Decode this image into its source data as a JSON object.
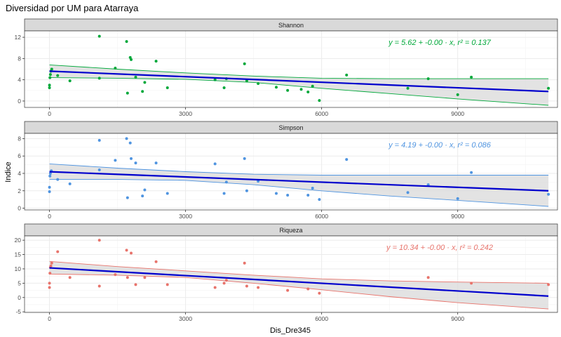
{
  "title": "Diversidad por UM para Atarraya",
  "xlabel": "Dis_Dre345",
  "ylabel": "Indice",
  "colors": {
    "strip_bg": "#d9d9d9",
    "panel_border": "#333333",
    "grid": "#ebebeb",
    "ribbon": "#d9d9d9",
    "fit_line": "#0000cd"
  },
  "chart_data": [
    {
      "type": "scatter",
      "strip": "Shannon",
      "color": "#00a83a",
      "equation": "y = 5.62 + -0.00 · x,  r² = 0.137",
      "xlim": [
        -550,
        11200
      ],
      "ylim": [
        -1.2,
        13.2
      ],
      "y_ticks": [
        0,
        4,
        8,
        12
      ],
      "x_ticks": [
        0,
        3000,
        6000,
        9000
      ],
      "fit": {
        "x": [
          0,
          11000
        ],
        "y": [
          5.62,
          1.8
        ]
      },
      "ribbon_upper": {
        "x": [
          0,
          1500,
          3000,
          4500,
          6000,
          7500,
          9000,
          11000
        ],
        "y": [
          6.8,
          6.0,
          5.3,
          4.7,
          4.3,
          4.2,
          4.2,
          4.2
        ]
      },
      "ribbon_lower": {
        "x": [
          0,
          1500,
          3000,
          4500,
          6000,
          7500,
          9000,
          11000
        ],
        "y": [
          4.4,
          4.3,
          4.1,
          3.5,
          2.4,
          1.4,
          0.4,
          -0.8
        ]
      },
      "points": [
        {
          "x": 0,
          "y": 2.5
        },
        {
          "x": 0,
          "y": 3.0
        },
        {
          "x": 10,
          "y": 4.4
        },
        {
          "x": 20,
          "y": 5.0
        },
        {
          "x": 30,
          "y": 5.6
        },
        {
          "x": 50,
          "y": 6.0
        },
        {
          "x": 180,
          "y": 4.8
        },
        {
          "x": 450,
          "y": 3.8
        },
        {
          "x": 1100,
          "y": 12.2
        },
        {
          "x": 1100,
          "y": 4.3
        },
        {
          "x": 1450,
          "y": 6.2
        },
        {
          "x": 1700,
          "y": 11.2
        },
        {
          "x": 1720,
          "y": 1.5
        },
        {
          "x": 1780,
          "y": 8.2
        },
        {
          "x": 1800,
          "y": 7.8
        },
        {
          "x": 1900,
          "y": 4.5
        },
        {
          "x": 2050,
          "y": 1.8
        },
        {
          "x": 2100,
          "y": 3.5
        },
        {
          "x": 2350,
          "y": 7.5
        },
        {
          "x": 2600,
          "y": 2.5
        },
        {
          "x": 3650,
          "y": 4.0
        },
        {
          "x": 3850,
          "y": 2.5
        },
        {
          "x": 3900,
          "y": 4.2
        },
        {
          "x": 4300,
          "y": 7.0
        },
        {
          "x": 4350,
          "y": 3.8
        },
        {
          "x": 4600,
          "y": 3.3
        },
        {
          "x": 5000,
          "y": 2.6
        },
        {
          "x": 5250,
          "y": 2.0
        },
        {
          "x": 5550,
          "y": 2.2
        },
        {
          "x": 5700,
          "y": 1.7
        },
        {
          "x": 5800,
          "y": 2.8
        },
        {
          "x": 5950,
          "y": 0.1
        },
        {
          "x": 6550,
          "y": 4.9
        },
        {
          "x": 7900,
          "y": 2.4
        },
        {
          "x": 8350,
          "y": 4.2
        },
        {
          "x": 9000,
          "y": 1.2
        },
        {
          "x": 9300,
          "y": 4.5
        },
        {
          "x": 11000,
          "y": 2.4
        }
      ]
    },
    {
      "type": "scatter",
      "strip": "Simpson",
      "color": "#4f94e0",
      "equation": "y = 4.19 + -0.00 · x,  r² = 0.086",
      "xlim": [
        -550,
        11200
      ],
      "ylim": [
        -0.2,
        8.6
      ],
      "y_ticks": [
        0,
        2,
        4,
        6,
        8
      ],
      "x_ticks": [
        0,
        3000,
        6000,
        9000
      ],
      "fit": {
        "x": [
          0,
          11000
        ],
        "y": [
          4.19,
          2.0
        ]
      },
      "ribbon_upper": {
        "x": [
          0,
          1500,
          3000,
          4500,
          6000,
          7500,
          9000,
          11000
        ],
        "y": [
          5.1,
          4.6,
          4.2,
          3.9,
          3.8,
          3.8,
          3.8,
          3.8
        ]
      },
      "ribbon_lower": {
        "x": [
          0,
          1500,
          3000,
          4500,
          6000,
          7500,
          9000,
          11000
        ],
        "y": [
          3.3,
          3.3,
          3.2,
          2.7,
          2.0,
          1.4,
          0.9,
          0.2
        ]
      },
      "points": [
        {
          "x": 0,
          "y": 1.9
        },
        {
          "x": 0,
          "y": 2.4
        },
        {
          "x": 10,
          "y": 3.7
        },
        {
          "x": 20,
          "y": 4.0
        },
        {
          "x": 40,
          "y": 4.3
        },
        {
          "x": 180,
          "y": 3.3
        },
        {
          "x": 450,
          "y": 2.8
        },
        {
          "x": 1100,
          "y": 7.8
        },
        {
          "x": 1100,
          "y": 4.4
        },
        {
          "x": 1450,
          "y": 5.5
        },
        {
          "x": 1700,
          "y": 8.0
        },
        {
          "x": 1720,
          "y": 1.2
        },
        {
          "x": 1780,
          "y": 7.5
        },
        {
          "x": 1800,
          "y": 5.7
        },
        {
          "x": 1900,
          "y": 5.2
        },
        {
          "x": 2050,
          "y": 1.4
        },
        {
          "x": 2100,
          "y": 2.1
        },
        {
          "x": 2350,
          "y": 5.2
        },
        {
          "x": 2600,
          "y": 1.7
        },
        {
          "x": 3650,
          "y": 5.1
        },
        {
          "x": 3850,
          "y": 1.7
        },
        {
          "x": 3900,
          "y": 3.0
        },
        {
          "x": 4300,
          "y": 5.7
        },
        {
          "x": 4350,
          "y": 2.0
        },
        {
          "x": 4600,
          "y": 3.1
        },
        {
          "x": 5000,
          "y": 1.7
        },
        {
          "x": 5250,
          "y": 1.5
        },
        {
          "x": 5700,
          "y": 1.5
        },
        {
          "x": 5800,
          "y": 2.3
        },
        {
          "x": 5950,
          "y": 1.0
        },
        {
          "x": 6550,
          "y": 5.6
        },
        {
          "x": 7900,
          "y": 1.8
        },
        {
          "x": 8350,
          "y": 2.7
        },
        {
          "x": 9000,
          "y": 1.1
        },
        {
          "x": 9300,
          "y": 4.1
        },
        {
          "x": 11000,
          "y": 1.6
        }
      ]
    },
    {
      "type": "scatter",
      "strip": "Riqueza",
      "color": "#e8736b",
      "equation": "y = 10.34 + -0.00 · x,  r² = 0.242",
      "xlim": [
        -550,
        11200
      ],
      "ylim": [
        -5.2,
        21.5
      ],
      "y_ticks": [
        -5,
        0,
        5,
        10,
        15,
        20
      ],
      "x_ticks": [
        0,
        3000,
        6000,
        9000
      ],
      "fit": {
        "x": [
          0,
          11000
        ],
        "y": [
          10.34,
          0.5
        ]
      },
      "ribbon_upper": {
        "x": [
          0,
          1500,
          3000,
          4500,
          6000,
          7500,
          9000,
          11000
        ],
        "y": [
          12.6,
          10.8,
          9.3,
          7.8,
          6.5,
          5.8,
          5.4,
          5.0
        ]
      },
      "ribbon_lower": {
        "x": [
          0,
          1500,
          3000,
          4500,
          6000,
          7500,
          9000,
          11000
        ],
        "y": [
          8.2,
          7.8,
          7.0,
          5.0,
          2.7,
          0.3,
          -1.8,
          -4.0
        ]
      },
      "points": [
        {
          "x": 0,
          "y": 3.5
        },
        {
          "x": 0,
          "y": 5.0
        },
        {
          "x": 10,
          "y": 8.5
        },
        {
          "x": 20,
          "y": 10.5
        },
        {
          "x": 30,
          "y": 11.0
        },
        {
          "x": 50,
          "y": 12.0
        },
        {
          "x": 180,
          "y": 16.0
        },
        {
          "x": 450,
          "y": 7.0
        },
        {
          "x": 1100,
          "y": 20.0
        },
        {
          "x": 1100,
          "y": 4.0
        },
        {
          "x": 1450,
          "y": 8.0
        },
        {
          "x": 1700,
          "y": 16.5
        },
        {
          "x": 1720,
          "y": 7.0
        },
        {
          "x": 1800,
          "y": 15.5
        },
        {
          "x": 1900,
          "y": 4.5
        },
        {
          "x": 2100,
          "y": 7.0
        },
        {
          "x": 2350,
          "y": 12.5
        },
        {
          "x": 2600,
          "y": 4.5
        },
        {
          "x": 3650,
          "y": 3.5
        },
        {
          "x": 3850,
          "y": 5.0
        },
        {
          "x": 3900,
          "y": 6.0
        },
        {
          "x": 4300,
          "y": 12.0
        },
        {
          "x": 4350,
          "y": 4.0
        },
        {
          "x": 4600,
          "y": 3.5
        },
        {
          "x": 5250,
          "y": 2.5
        },
        {
          "x": 5700,
          "y": 3.0
        },
        {
          "x": 5950,
          "y": 1.5
        },
        {
          "x": 8350,
          "y": 7.0
        },
        {
          "x": 9300,
          "y": 5.0
        },
        {
          "x": 11000,
          "y": 4.5
        }
      ]
    }
  ]
}
